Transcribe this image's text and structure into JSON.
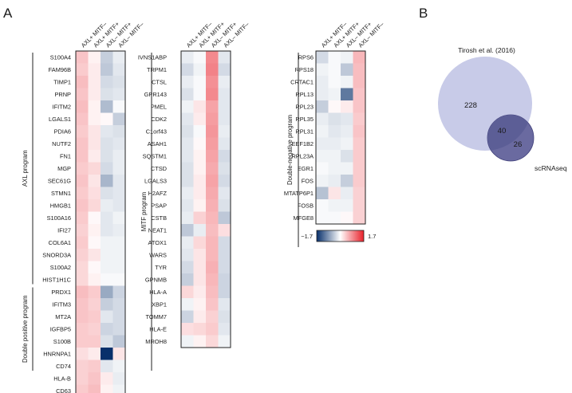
{
  "panels": {
    "a": "A",
    "b": "B"
  },
  "colors": {
    "low": "#08306b",
    "mid": "#ffffff",
    "high": "#e8202a",
    "venn_large": "#c8cbe8",
    "venn_small": "#6a6aa0",
    "venn_overlap": "#5c5e96",
    "venn_small_stroke": "#3d3d78"
  },
  "chart_data": [
    {
      "type": "heatmap",
      "title": "",
      "columns": [
        "AXL+ MITF–",
        "AXL+ MITF+",
        "AXL– MITF+",
        "AXL– MITF–"
      ],
      "color_scale": {
        "min": -1.7,
        "max": 1.7,
        "min_label": "−1.7",
        "max_label": "1.7"
      },
      "blocks": [
        {
          "id": "h1",
          "groups": [
            {
              "label": "AXL program",
              "start": 0,
              "end": 18
            },
            {
              "label": "Double positive program",
              "start": 19,
              "end": 25
            }
          ],
          "rows": [
            {
              "gene": "S100A4",
              "values": [
                0.45,
                0.1,
                -0.4,
                -0.15
              ]
            },
            {
              "gene": "FAM96B",
              "values": [
                0.4,
                0.15,
                -0.45,
                -0.2
              ]
            },
            {
              "gene": "TIMP1",
              "values": [
                0.5,
                0.15,
                -0.3,
                -0.25
              ]
            },
            {
              "gene": "PRNP",
              "values": [
                0.45,
                0.15,
                -0.25,
                -0.2
              ]
            },
            {
              "gene": "IFITM2",
              "values": [
                0.5,
                0.1,
                -0.55,
                -0.05
              ]
            },
            {
              "gene": "LGALS1",
              "values": [
                0.45,
                0.1,
                0.05,
                -0.4
              ]
            },
            {
              "gene": "PDIA6",
              "values": [
                0.4,
                0.2,
                -0.2,
                -0.25
              ]
            },
            {
              "gene": "NUTF2",
              "values": [
                0.45,
                0.2,
                -0.25,
                -0.2
              ]
            },
            {
              "gene": "FN1",
              "values": [
                0.45,
                0.15,
                -0.25,
                -0.15
              ]
            },
            {
              "gene": "MGP",
              "values": [
                0.4,
                0.3,
                -0.3,
                -0.15
              ]
            },
            {
              "gene": "SEC61G",
              "values": [
                0.45,
                0.2,
                -0.6,
                -0.2
              ]
            },
            {
              "gene": "STMN1",
              "values": [
                0.4,
                0.25,
                -0.25,
                -0.2
              ]
            },
            {
              "gene": "HMGB1",
              "values": [
                0.45,
                0.3,
                -0.15,
                -0.2
              ]
            },
            {
              "gene": "S100A16",
              "values": [
                0.4,
                0.05,
                -0.2,
                -0.1
              ]
            },
            {
              "gene": "IFI27",
              "values": [
                0.35,
                0.1,
                -0.2,
                -0.15
              ]
            },
            {
              "gene": "COL6A1",
              "values": [
                0.4,
                0.05,
                -0.1,
                -0.1
              ]
            },
            {
              "gene": "SNORD3A",
              "values": [
                0.35,
                0.2,
                -0.1,
                -0.1
              ]
            },
            {
              "gene": "S100A2",
              "values": [
                0.3,
                0.05,
                -0.1,
                -0.1
              ]
            },
            {
              "gene": "HIST1H1C",
              "values": [
                0.3,
                0.1,
                -0.05,
                -0.05
              ]
            },
            {
              "gene": "PRDX1",
              "values": [
                0.5,
                0.4,
                -0.7,
                -0.35
              ]
            },
            {
              "gene": "IFITM3",
              "values": [
                0.45,
                0.35,
                -0.4,
                -0.3
              ]
            },
            {
              "gene": "MT2A",
              "values": [
                0.45,
                0.4,
                -0.2,
                -0.3
              ]
            },
            {
              "gene": "IGFBP5",
              "values": [
                0.4,
                0.35,
                -0.35,
                -0.3
              ]
            },
            {
              "gene": "S100B",
              "values": [
                0.4,
                0.4,
                -0.25,
                -0.45
              ]
            },
            {
              "gene": "HNRNPA1",
              "values": [
                0.25,
                0.15,
                -1.7,
                0.2
              ]
            },
            {
              "gene": "CD74",
              "values": [
                0.35,
                0.4,
                -0.2,
                -0.1
              ]
            },
            {
              "gene": "HLA-B",
              "values": [
                0.35,
                0.45,
                0.15,
                -0.15
              ]
            },
            {
              "gene": "CD63",
              "values": [
                0.4,
                0.5,
                0.1,
                -0.1
              ]
            }
          ]
        },
        {
          "id": "h2",
          "groups": [
            {
              "label": "MITF program",
              "start": 0,
              "end": 25
            }
          ],
          "rows": [
            {
              "gene": "IVNS1ABP",
              "values": [
                -0.15,
                -0.05,
                0.9,
                -0.2
              ]
            },
            {
              "gene": "TRPM1",
              "values": [
                -0.3,
                -0.1,
                0.95,
                -0.3
              ]
            },
            {
              "gene": "CTSL",
              "values": [
                -0.15,
                -0.05,
                0.85,
                -0.15
              ]
            },
            {
              "gene": "GPR143",
              "values": [
                -0.25,
                -0.05,
                0.9,
                -0.2
              ]
            },
            {
              "gene": "PMEL",
              "values": [
                -0.1,
                0.2,
                0.7,
                -0.2
              ]
            },
            {
              "gene": "CDK2",
              "values": [
                -0.2,
                0.15,
                0.75,
                -0.2
              ]
            },
            {
              "gene": "C1orf43",
              "values": [
                -0.25,
                -0.05,
                0.8,
                -0.15
              ]
            },
            {
              "gene": "ASAH1",
              "values": [
                -0.2,
                0.05,
                0.75,
                -0.2
              ]
            },
            {
              "gene": "SQSTM1",
              "values": [
                -0.2,
                0.1,
                0.7,
                -0.3
              ]
            },
            {
              "gene": "CTSD",
              "values": [
                -0.25,
                0.1,
                0.65,
                -0.25
              ]
            },
            {
              "gene": "LGALS3",
              "values": [
                -0.25,
                0.15,
                0.7,
                -0.3
              ]
            },
            {
              "gene": "H2AFZ",
              "values": [
                -0.15,
                0.15,
                0.65,
                -0.2
              ]
            },
            {
              "gene": "PSAP",
              "values": [
                -0.2,
                0.1,
                0.6,
                -0.25
              ]
            },
            {
              "gene": "CSTB",
              "values": [
                -0.15,
                0.35,
                0.55,
                -0.45
              ]
            },
            {
              "gene": "NEAT1",
              "values": [
                -0.45,
                -0.15,
                0.5,
                0.25
              ]
            },
            {
              "gene": "ATOX1",
              "values": [
                -0.15,
                0.3,
                0.55,
                -0.3
              ]
            },
            {
              "gene": "WARS",
              "values": [
                -0.2,
                0.2,
                0.55,
                -0.3
              ]
            },
            {
              "gene": "TYR",
              "values": [
                -0.3,
                0.2,
                0.6,
                -0.3
              ]
            },
            {
              "gene": "GPNMB",
              "values": [
                -0.4,
                0.2,
                0.55,
                -0.35
              ]
            },
            {
              "gene": "HLA-A",
              "values": [
                0.3,
                0.15,
                0.5,
                -0.35
              ]
            },
            {
              "gene": "XBP1",
              "values": [
                -0.1,
                0.1,
                0.45,
                -0.2
              ]
            },
            {
              "gene": "TOMM7",
              "values": [
                -0.35,
                0.15,
                0.35,
                -0.25
              ]
            },
            {
              "gene": "HLA-E",
              "values": [
                0.25,
                0.3,
                0.4,
                -0.2
              ]
            },
            {
              "gene": "MROH8",
              "values": [
                -0.1,
                0.1,
                0.3,
                -0.1
              ]
            }
          ]
        },
        {
          "id": "h3",
          "groups": [
            {
              "label": "Double-negative  program",
              "start": 0,
              "end": 15
            }
          ],
          "rows": [
            {
              "gene": "RPS6",
              "values": [
                -0.3,
                -0.05,
                -0.1,
                0.55
              ]
            },
            {
              "gene": "RPS18",
              "values": [
                -0.1,
                -0.05,
                -0.45,
                0.5
              ]
            },
            {
              "gene": "CRTAC1",
              "values": [
                -0.15,
                -0.05,
                -0.1,
                0.5
              ]
            },
            {
              "gene": "RPL13",
              "values": [
                -0.15,
                -0.1,
                -1.1,
                0.45
              ]
            },
            {
              "gene": "RPL23",
              "values": [
                -0.4,
                0.05,
                0.15,
                0.45
              ]
            },
            {
              "gene": "RPL35",
              "values": [
                -0.15,
                -0.25,
                -0.2,
                0.4
              ]
            },
            {
              "gene": "RPL31",
              "values": [
                -0.1,
                -0.2,
                -0.15,
                0.45
              ]
            },
            {
              "gene": "EEF1B2",
              "values": [
                -0.15,
                -0.15,
                -0.1,
                0.4
              ]
            },
            {
              "gene": "RPL23A",
              "values": [
                -0.1,
                -0.1,
                -0.25,
                0.4
              ]
            },
            {
              "gene": "EGR1",
              "values": [
                -0.05,
                -0.1,
                -0.1,
                0.4
              ]
            },
            {
              "gene": "FOS",
              "values": [
                -0.1,
                -0.15,
                -0.4,
                0.4
              ]
            },
            {
              "gene": "MTATP6P1",
              "values": [
                -0.5,
                0.2,
                -0.15,
                0.35
              ]
            },
            {
              "gene": "FOSB",
              "values": [
                -0.05,
                -0.1,
                -0.1,
                0.35
              ]
            },
            {
              "gene": "MFGE8",
              "values": [
                -0.05,
                -0.05,
                0.05,
                0.35
              ]
            }
          ]
        }
      ]
    },
    {
      "type": "venn",
      "sets": [
        {
          "name": "Tirosh et al. (2016)",
          "only": 228
        },
        {
          "name": "scRNAseq",
          "only": 26
        }
      ],
      "intersection": 40
    }
  ]
}
